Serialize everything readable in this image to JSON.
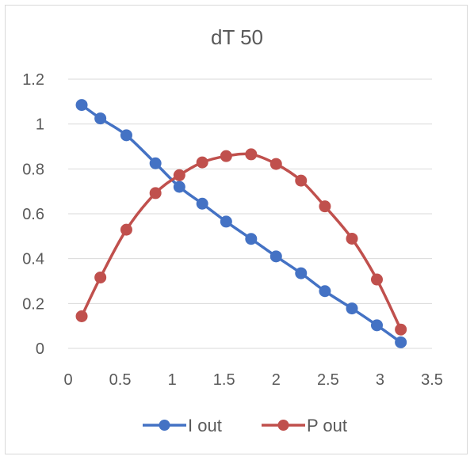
{
  "chart_data": {
    "type": "scatter",
    "title": "dT 50",
    "xlabel": "",
    "ylabel": "",
    "xlim": [
      0,
      3.5
    ],
    "ylim": [
      0,
      1.2
    ],
    "x_ticks": [
      "0",
      "0.5",
      "1",
      "1.5",
      "2",
      "2.5",
      "3",
      "3.5"
    ],
    "y_ticks": [
      "0",
      "0.2",
      "0.4",
      "0.6",
      "0.8",
      "1",
      "1.2"
    ],
    "grid": "horizontal",
    "legend_position": "bottom",
    "series": [
      {
        "name": "I out",
        "color": "#4472c4",
        "points": [
          [
            0.13,
            1.085
          ],
          [
            0.31,
            1.025
          ],
          [
            0.56,
            0.95
          ],
          [
            0.84,
            0.825
          ],
          [
            1.07,
            0.72
          ],
          [
            1.29,
            0.645
          ],
          [
            1.52,
            0.565
          ],
          [
            1.76,
            0.488
          ],
          [
            2.0,
            0.41
          ],
          [
            2.24,
            0.335
          ],
          [
            2.47,
            0.255
          ],
          [
            2.73,
            0.178
          ],
          [
            2.97,
            0.103
          ],
          [
            3.2,
            0.027
          ]
        ]
      },
      {
        "name": "P out",
        "color": "#c0504d",
        "points": [
          [
            0.13,
            0.143
          ],
          [
            0.31,
            0.316
          ],
          [
            0.56,
            0.529
          ],
          [
            0.84,
            0.692
          ],
          [
            1.07,
            0.772
          ],
          [
            1.29,
            0.829
          ],
          [
            1.52,
            0.857
          ],
          [
            1.76,
            0.865
          ],
          [
            2.0,
            0.822
          ],
          [
            2.24,
            0.748
          ],
          [
            2.47,
            0.633
          ],
          [
            2.73,
            0.489
          ],
          [
            2.97,
            0.307
          ],
          [
            3.2,
            0.084
          ]
        ]
      }
    ]
  }
}
